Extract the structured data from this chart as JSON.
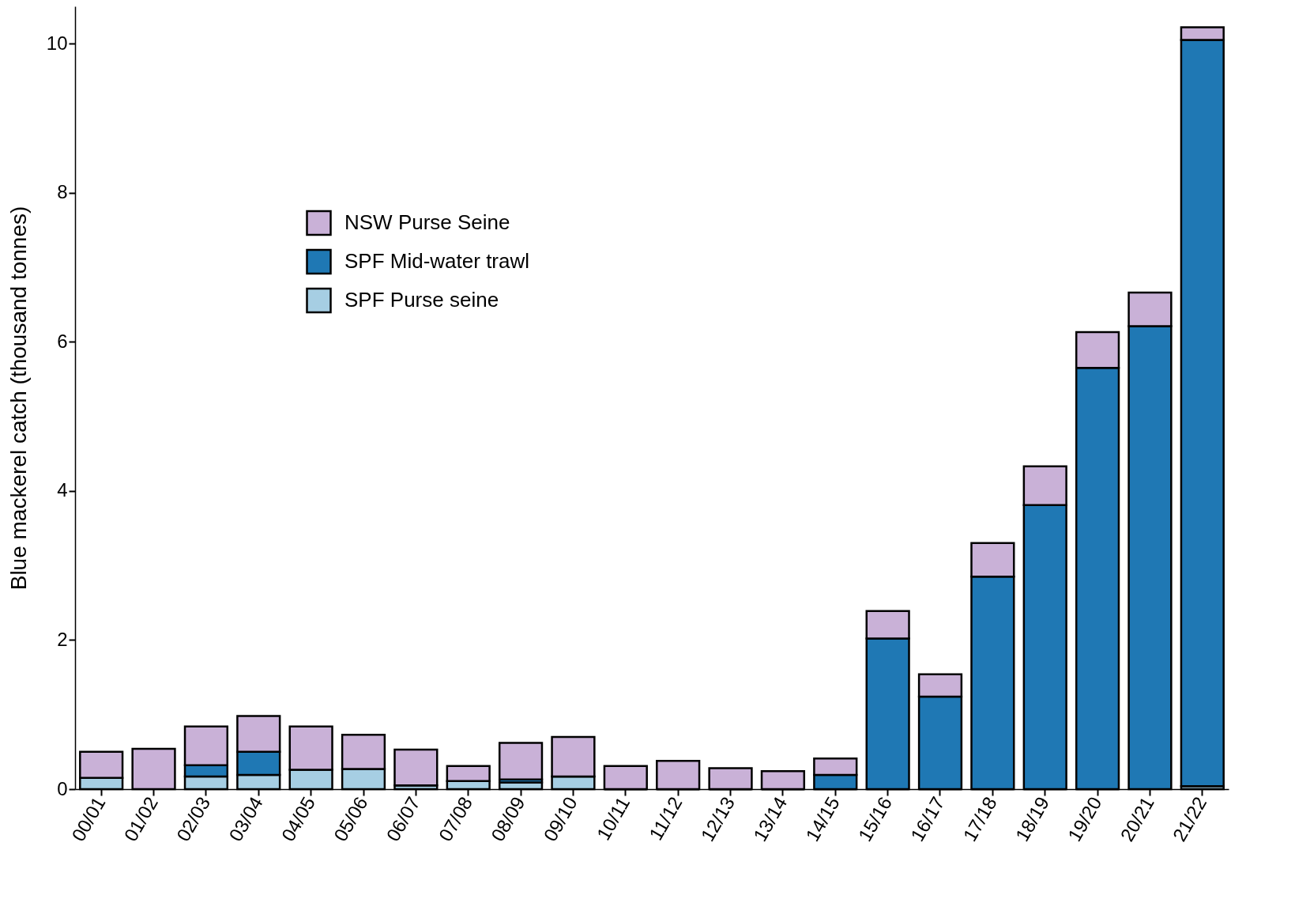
{
  "chart_data": {
    "type": "bar",
    "stacked": true,
    "ylabel": "Blue mackerel catch (thousand tonnes)",
    "categories": [
      "00/01",
      "01/02",
      "02/03",
      "03/04",
      "04/05",
      "05/06",
      "06/07",
      "07/08",
      "08/09",
      "09/10",
      "10/11",
      "11/12",
      "12/13",
      "13/14",
      "14/15",
      "15/16",
      "16/17",
      "17/18",
      "18/19",
      "19/20",
      "20/21",
      "21/22"
    ],
    "series": [
      {
        "name": "SPF Purse seine",
        "color": "#a6cee3",
        "values": [
          0.15,
          null,
          0.17,
          0.19,
          0.26,
          0.27,
          0.05,
          0.11,
          0.09,
          0.17,
          0,
          0,
          0,
          0,
          0,
          0,
          0,
          0,
          0,
          0,
          null,
          0.04
        ]
      },
      {
        "name": "SPF Mid-water trawl",
        "color": "#1f78b4",
        "values": [
          0,
          null,
          0.15,
          0.31,
          null,
          0,
          0,
          0,
          0.04,
          0,
          0,
          0,
          0,
          0,
          0.19,
          2.02,
          1.24,
          2.85,
          3.81,
          5.65,
          6.21,
          10.01
        ]
      },
      {
        "name": "NSW Purse Seine",
        "color": "#c9b1d7",
        "values": [
          0.35,
          0.54,
          0.52,
          0.48,
          0.58,
          0.46,
          0.48,
          0.2,
          0.49,
          0.53,
          0.31,
          0.38,
          0.28,
          0.24,
          0.22,
          0.37,
          0.3,
          0.45,
          0.52,
          0.48,
          0.45,
          0.17
        ]
      }
    ],
    "ylim": [
      0,
      10.5
    ],
    "yticks": [
      0,
      2,
      4,
      6,
      8,
      10
    ],
    "grid": false,
    "legend": "top left"
  }
}
